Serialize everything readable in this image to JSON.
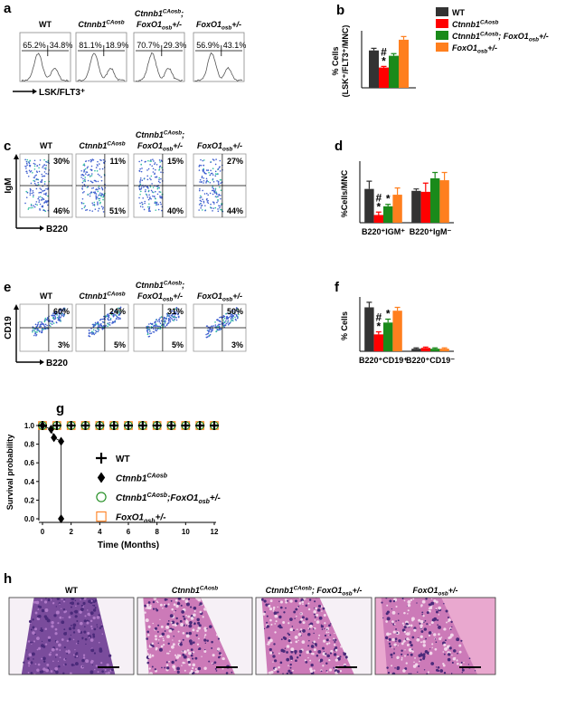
{
  "panels": {
    "a": {
      "letter": "a",
      "axis_label": "LSK/FLT3⁺",
      "plots": [
        {
          "label": [
            [
              {
                "t": "WT"
              }
            ]
          ],
          "left": "65.2%",
          "right": "34.8%"
        },
        {
          "label": [
            [
              {
                "t": "Ctnnb1"
              },
              {
                "sup": "CAosb"
              }
            ]
          ],
          "left": "81.1%",
          "right": "18.9%"
        },
        {
          "label": [
            [
              {
                "t": "Ctnnb1"
              },
              {
                "sup": "CAosb"
              },
              {
                "t": ";"
              }
            ],
            [
              {
                "t": "FoxO1"
              },
              {
                "sub": "osb"
              },
              {
                "t": "+/-"
              }
            ]
          ],
          "left": "70.7%",
          "right": "29.3%"
        },
        {
          "label": [
            [
              {
                "t": "FoxO1"
              },
              {
                "sub": "osb"
              },
              {
                "t": "+/-"
              }
            ]
          ],
          "left": "56.9%",
          "right": "43.1%"
        }
      ]
    },
    "c": {
      "letter": "c",
      "y_axis_label": "IgM",
      "x_axis_label": "B220",
      "plots": [
        {
          "label": [
            [
              {
                "t": "WT"
              }
            ]
          ],
          "upper": "30%",
          "lower": "46%"
        },
        {
          "label": [
            [
              {
                "t": "Ctnnb1"
              },
              {
                "sup": "CAosb"
              }
            ]
          ],
          "upper": "11%",
          "lower": "51%"
        },
        {
          "label": [
            [
              {
                "t": "Ctnnb1"
              },
              {
                "sup": "CAosb"
              },
              {
                "t": ";"
              }
            ],
            [
              {
                "t": "FoxO1"
              },
              {
                "sub": "osb"
              },
              {
                "t": "+/-"
              }
            ]
          ],
          "upper": "15%",
          "lower": "40%"
        },
        {
          "label": [
            [
              {
                "t": "FoxO1"
              },
              {
                "sub": "osb"
              },
              {
                "t": "+/-"
              }
            ]
          ],
          "upper": "27%",
          "lower": "44%"
        }
      ]
    },
    "e": {
      "letter": "e",
      "y_axis_label": "CD19",
      "x_axis_label": "B220",
      "plots": [
        {
          "label": [
            [
              {
                "t": "WT"
              }
            ]
          ],
          "upper": "60%",
          "lower": "3%"
        },
        {
          "label": [
            [
              {
                "t": "Ctnnb1"
              },
              {
                "sup": "CAosb"
              }
            ]
          ],
          "upper": "24%",
          "lower": "5%"
        },
        {
          "label": [
            [
              {
                "t": "Ctnnb1"
              },
              {
                "sup": "CAosb"
              },
              {
                "t": ";"
              }
            ],
            [
              {
                "t": "FoxO1"
              },
              {
                "sub": "osb"
              },
              {
                "t": "+/-"
              }
            ]
          ],
          "upper": "31%",
          "lower": "5%"
        },
        {
          "label": [
            [
              {
                "t": "FoxO1"
              },
              {
                "sub": "osb"
              },
              {
                "t": "+/-"
              }
            ]
          ],
          "upper": "50%",
          "lower": "3%"
        }
      ]
    },
    "h": {
      "letter": "h",
      "images": [
        {
          "label": [
            [
              {
                "t": "WT"
              }
            ]
          ]
        },
        {
          "label": [
            [
              {
                "t": "Ctnnb1"
              },
              {
                "sup": "CAosb"
              }
            ]
          ]
        },
        {
          "label": [
            [
              {
                "t": "Ctnnb1"
              },
              {
                "sup": "CAosb"
              },
              {
                "t": "; FoxO1"
              },
              {
                "sub": "osb"
              },
              {
                "t": "+/-"
              }
            ]
          ]
        },
        {
          "label": [
            [
              {
                "t": "FoxO1"
              },
              {
                "sub": "osb"
              },
              {
                "t": "+/-"
              }
            ]
          ]
        }
      ]
    }
  },
  "chart_data": [
    {
      "type": "bar",
      "letter": "b",
      "ylabel": [
        "% Cells",
        "(LSK⁺/FLT3⁺/MNC)"
      ],
      "categories": [
        null
      ],
      "ylim": [
        0,
        50
      ],
      "legend": "right",
      "series": [
        {
          "name": [
            {
              "t": "WT"
            }
          ],
          "color": "#333333",
          "values": [
            35
          ],
          "errors": [
            2
          ]
        },
        {
          "name": [
            {
              "t": "Ctnnb1"
            },
            {
              "sup": "CAosb"
            }
          ],
          "color": "#ff0000",
          "values": [
            19
          ],
          "errors": [
            1
          ],
          "annotations": [
            [
              "#",
              "*"
            ]
          ]
        },
        {
          "name": [
            {
              "t": "Ctnnb1"
            },
            {
              "sup": "CAosb"
            },
            {
              "t": "; FoxO1"
            },
            {
              "sub": "osb"
            },
            {
              "t": "+/-"
            }
          ],
          "color": "#1a8a1a",
          "values": [
            30
          ],
          "errors": [
            2
          ]
        },
        {
          "name": [
            {
              "t": "FoxO1"
            },
            {
              "sub": "osb"
            },
            {
              "t": "+/-"
            }
          ],
          "color": "#ff7f1e",
          "values": [
            45
          ],
          "errors": [
            3
          ]
        }
      ]
    },
    {
      "type": "bar",
      "letter": "d",
      "ylabel": "%Cells/MNC",
      "categories": [
        "B220⁺IGM⁺",
        "B220⁺IgM⁻"
      ],
      "ylim": [
        0,
        60
      ],
      "series": [
        {
          "color": "#333333",
          "values": [
            35,
            33
          ],
          "errors": [
            8,
            2
          ]
        },
        {
          "color": "#ff0000",
          "values": [
            8,
            32
          ],
          "errors": [
            3,
            9
          ],
          "annotations": [
            [
              "#",
              "*"
            ],
            null
          ]
        },
        {
          "color": "#1a8a1a",
          "values": [
            17,
            46
          ],
          "errors": [
            2,
            6
          ],
          "annotations": [
            [
              "*"
            ],
            null
          ]
        },
        {
          "color": "#ff7f1e",
          "values": [
            29,
            44
          ],
          "errors": [
            7,
            8
          ]
        }
      ]
    },
    {
      "type": "bar",
      "letter": "f",
      "ylabel": "% Cells",
      "categories": [
        "B220⁺CD19⁺",
        "B220⁺CD19⁻"
      ],
      "ylim": [
        0,
        60
      ],
      "series": [
        {
          "color": "#333333",
          "values": [
            52,
            3
          ],
          "errors": [
            6,
            1
          ]
        },
        {
          "color": "#ff0000",
          "values": [
            20,
            4
          ],
          "errors": [
            3,
            1
          ],
          "annotations": [
            [
              "#",
              "*"
            ],
            null
          ]
        },
        {
          "color": "#1a8a1a",
          "values": [
            34,
            3
          ],
          "errors": [
            4,
            1
          ],
          "annotations": [
            [
              "*"
            ],
            null
          ]
        },
        {
          "color": "#ff7f1e",
          "values": [
            48,
            3
          ],
          "errors": [
            4,
            1
          ]
        }
      ]
    },
    {
      "type": "line",
      "letter": "g",
      "xlabel": "Time (Months)",
      "ylabel": "Survival probability",
      "xlim": [
        0,
        12
      ],
      "xticks": [
        0,
        2,
        4,
        6,
        8,
        10,
        12
      ],
      "ylim": [
        0,
        1
      ],
      "yticks": [
        {
          "value": 0,
          "label": "0.0"
        },
        0.2,
        0.4,
        0.6,
        0.8,
        {
          "value": 1,
          "label": "1.0"
        }
      ],
      "legend": "inside",
      "series": [
        {
          "name": [
            {
              "t": "WT"
            }
          ],
          "marker": "plus",
          "color": "#000000",
          "x": [
            0,
            1,
            2,
            3,
            4,
            5,
            6,
            7,
            8,
            9,
            10,
            11,
            12
          ],
          "values": [
            1,
            1,
            1,
            1,
            1,
            1,
            1,
            1,
            1,
            1,
            1,
            1,
            1
          ]
        },
        {
          "name": [
            {
              "t": "Ctnnb1"
            },
            {
              "sup": "CAosb"
            }
          ],
          "marker": "diamond",
          "color": "#000000",
          "line": true,
          "x": [
            0,
            0.6,
            0.8,
            1.3,
            1.3
          ],
          "values": [
            1,
            0.96,
            0.87,
            0.83,
            0
          ]
        },
        {
          "name": [
            {
              "t": "Ctnnb1"
            },
            {
              "sup": "CAosb"
            },
            {
              "t": ";FoxO1"
            },
            {
              "sub": "osb"
            },
            {
              "t": "+/-"
            }
          ],
          "marker": "circle",
          "color": "#1a8a1a",
          "x": [
            0,
            1,
            2,
            3,
            4,
            5,
            6,
            7,
            8,
            9,
            10,
            11,
            12
          ],
          "values": [
            1,
            1,
            1,
            1,
            1,
            1,
            1,
            1,
            1,
            1,
            1,
            1,
            1
          ]
        },
        {
          "name": [
            {
              "t": "FoxO1"
            },
            {
              "sub": "osb"
            },
            {
              "t": "+/-"
            }
          ],
          "marker": "square",
          "color": "#ff7f1e",
          "x": [
            0,
            1,
            2,
            3,
            4,
            5,
            6,
            7,
            8,
            9,
            10,
            11,
            12
          ],
          "values": [
            1,
            1,
            1,
            1,
            1,
            1,
            1,
            1,
            1,
            1,
            1,
            1,
            1
          ]
        }
      ]
    }
  ]
}
